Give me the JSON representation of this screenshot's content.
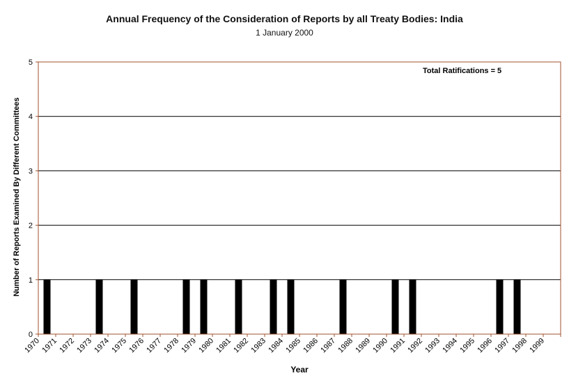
{
  "chart_data": {
    "type": "bar",
    "title": "Annual Frequency of the Consideration of Reports by all Treaty Bodies: India",
    "subtitle": "1 January 2000",
    "xlabel": "Year",
    "ylabel": "Number of Reports Examined By Different Committees",
    "annotation": "Total Ratifications = 5",
    "ylim": [
      0,
      5
    ],
    "yticks": [
      0,
      1,
      2,
      3,
      4,
      5
    ],
    "grid": true,
    "categories": [
      "1970",
      "1971",
      "1972",
      "1973",
      "1974",
      "1975",
      "1976",
      "1977",
      "1978",
      "1979",
      "1980",
      "1981",
      "1982",
      "1983",
      "1984",
      "1985",
      "1986",
      "1987",
      "1988",
      "1989",
      "1990",
      "1991",
      "1992",
      "1993",
      "1994",
      "1995",
      "1996",
      "1997",
      "1998",
      "1999"
    ],
    "bars": [
      {
        "category": "1970",
        "value": 1
      },
      {
        "category": "1973",
        "value": 1
      },
      {
        "category": "1975",
        "value": 1
      },
      {
        "category": "1978",
        "value": 1
      },
      {
        "category": "1979",
        "value": 1
      },
      {
        "category": "1981",
        "value": 1
      },
      {
        "category": "1983",
        "value": 1
      },
      {
        "category": "1984",
        "value": 1
      },
      {
        "category": "1987",
        "value": 1
      },
      {
        "category": "1990",
        "value": 1
      },
      {
        "category": "1991",
        "value": 1
      },
      {
        "category": "1996",
        "value": 1
      },
      {
        "category": "1997",
        "value": 1
      }
    ],
    "colors": {
      "bar": "#000000",
      "axis": "#a0522d",
      "grid": "#000000",
      "background": "#ffffff"
    }
  }
}
